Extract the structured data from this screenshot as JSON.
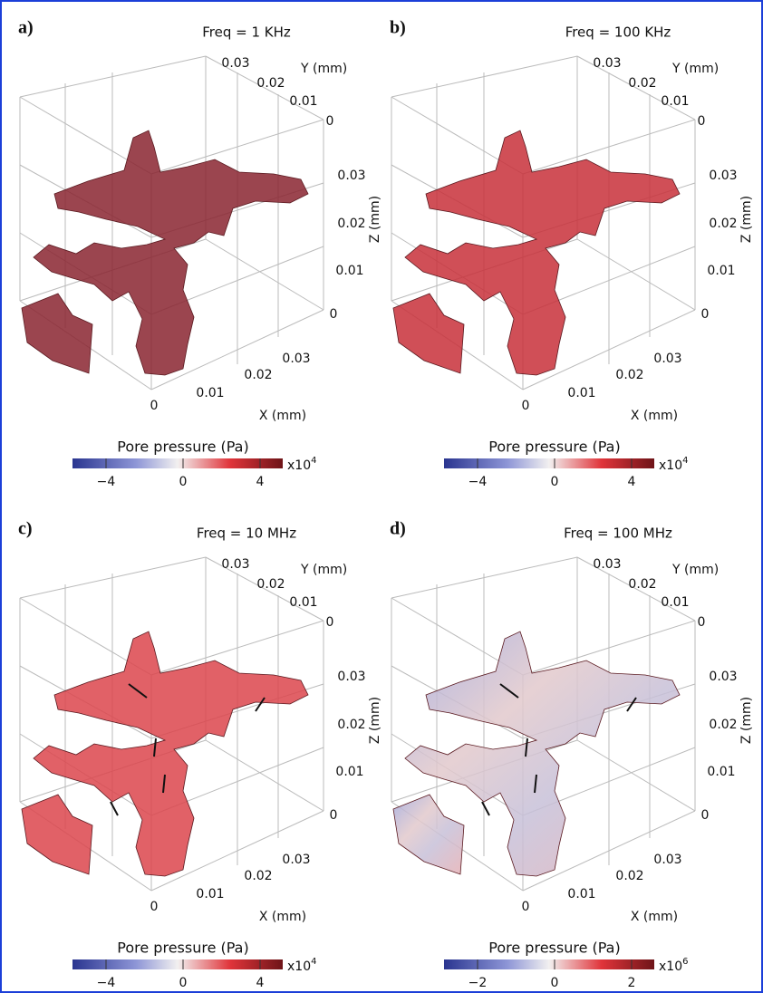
{
  "panels": [
    {
      "label": "a)",
      "title": "Freq = 1 KHz",
      "y_axis": {
        "label": "Y (mm)",
        "ticks": [
          "0.03",
          "0.02",
          "0.01",
          "0"
        ]
      },
      "z_axis": {
        "label": "Z (mm)",
        "ticks": [
          "0.03",
          "0.02",
          "0.01",
          "0"
        ]
      },
      "x_axis": {
        "label": "X (mm)",
        "ticks": [
          "0",
          "0.01",
          "0.02",
          "0.03"
        ]
      },
      "colorbar": {
        "title": "Pore pressure (Pa)",
        "ticks": [
          "−4",
          "0",
          "4"
        ],
        "multiplier": "x10",
        "exponent": "4"
      }
    },
    {
      "label": "b)",
      "title": "Freq = 100 KHz",
      "y_axis": {
        "label": "Y (mm)",
        "ticks": [
          "0.03",
          "0.02",
          "0.01",
          "0"
        ]
      },
      "z_axis": {
        "label": "Z (mm)",
        "ticks": [
          "0.03",
          "0.02",
          "0.01",
          "0"
        ]
      },
      "x_axis": {
        "label": "X (mm)",
        "ticks": [
          "0",
          "0.01",
          "0.02",
          "0.03"
        ]
      },
      "colorbar": {
        "title": "Pore pressure (Pa)",
        "ticks": [
          "−4",
          "0",
          "4"
        ],
        "multiplier": "x10",
        "exponent": "4"
      }
    },
    {
      "label": "c)",
      "title": "Freq = 10 MHz",
      "y_axis": {
        "label": "Y (mm)",
        "ticks": [
          "0.03",
          "0.02",
          "0.01",
          "0"
        ]
      },
      "z_axis": {
        "label": "Z (mm)",
        "ticks": [
          "0.03",
          "0.02",
          "0.01",
          "0"
        ]
      },
      "x_axis": {
        "label": "X (mm)",
        "ticks": [
          "0",
          "0.01",
          "0.02",
          "0.03"
        ]
      },
      "colorbar": {
        "title": "Pore pressure (Pa)",
        "ticks": [
          "−4",
          "0",
          "4"
        ],
        "multiplier": "x10",
        "exponent": "4"
      }
    },
    {
      "label": "d)",
      "title": "Freq = 100 MHz",
      "y_axis": {
        "label": "Y (mm)",
        "ticks": [
          "0.03",
          "0.02",
          "0.01",
          "0"
        ]
      },
      "z_axis": {
        "label": "Z (mm)",
        "ticks": [
          "0.03",
          "0.02",
          "0.01",
          "0"
        ]
      },
      "x_axis": {
        "label": "X (mm)",
        "ticks": [
          "0",
          "0.01",
          "0.02",
          "0.03"
        ]
      },
      "colorbar": {
        "title": "Pore pressure (Pa)",
        "ticks": [
          "−2",
          "0",
          "2"
        ],
        "multiplier": "x10",
        "exponent": "6"
      }
    }
  ]
}
